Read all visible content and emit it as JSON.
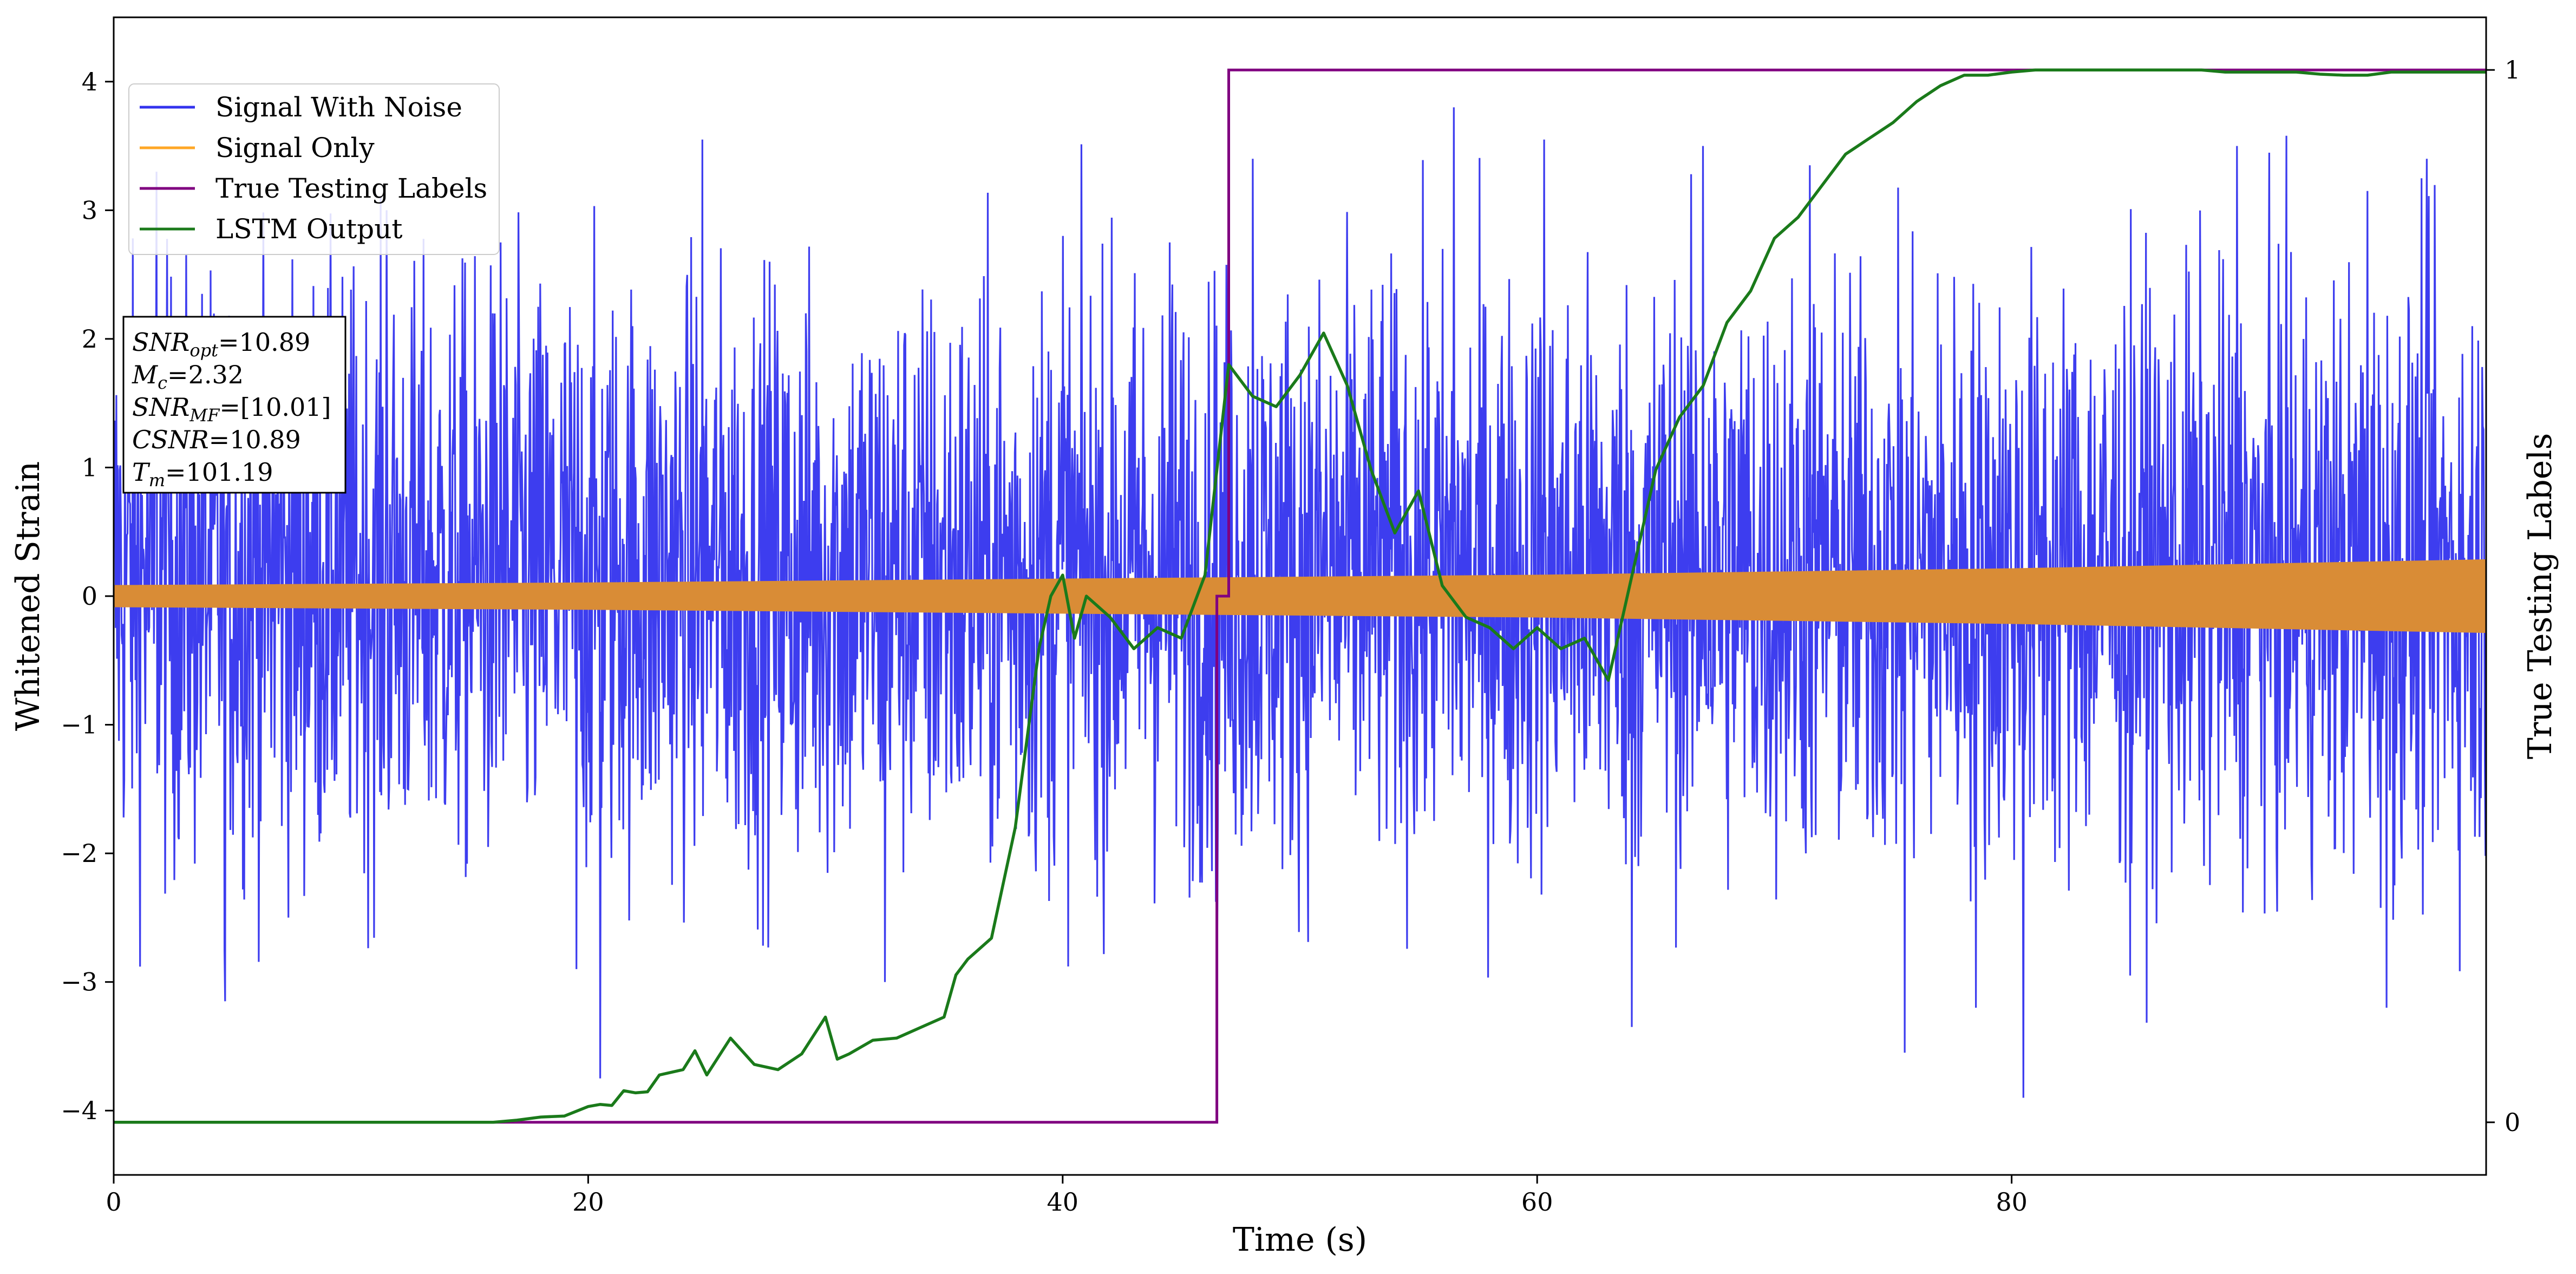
{
  "chart_data": {
    "type": "line",
    "xlabel": "Time (s)",
    "ylabel": "Whitened Strain",
    "y2label": "True Testing Labels",
    "xlim": [
      0,
      100
    ],
    "ylim": [
      -4.5,
      4.5
    ],
    "y2lim": [
      -0.05,
      1.05
    ],
    "xticks": [
      0,
      20,
      40,
      60,
      80
    ],
    "yticks": [
      -4,
      -3,
      -2,
      -1,
      0,
      1,
      2,
      3,
      4
    ],
    "y2ticks": [
      0,
      1
    ],
    "grid": false,
    "legend_position": "upper-left",
    "legend": [
      "Signal With Noise",
      "Signal Only",
      "True Testing Labels",
      "LSTM Output"
    ],
    "colors": {
      "signal_with_noise": "#3333ee",
      "signal_only": "#d98c36",
      "signal_only_legend": "#ffa726",
      "true_labels": "#800080",
      "lstm_output": "#1a7a1a"
    },
    "annotation": {
      "lines": [
        {
          "base": "SNR",
          "sub": "opt",
          "value": "=10.89"
        },
        {
          "base": "M",
          "sub": "c",
          "value": "=2.32"
        },
        {
          "base": "SNR",
          "sub": "MF",
          "value": "=[10.01]"
        },
        {
          "base": "CSNR",
          "sub": "",
          "value": "=10.89"
        },
        {
          "base": "T",
          "sub": "m",
          "value": "=101.19"
        }
      ]
    },
    "series": [
      {
        "name": "Signal With Noise",
        "axis": "left",
        "kind": "noise-band",
        "typical_range": [
          -1.7,
          2.0
        ],
        "approx_peak_values": [
          [
            1.8,
            3.3
          ],
          [
            4.7,
            -3.15
          ],
          [
            11.5,
            3.0
          ],
          [
            16.3,
            2.75
          ],
          [
            19.5,
            -2.9
          ],
          [
            20.5,
            -3.75
          ],
          [
            24.8,
            3.55
          ],
          [
            32.5,
            -3.0
          ],
          [
            40.0,
            2.8
          ],
          [
            44.5,
            2.75
          ],
          [
            46.5,
            -2.75
          ],
          [
            48.0,
            3.4
          ],
          [
            56.5,
            3.8
          ],
          [
            60.3,
            3.55
          ],
          [
            64.0,
            -3.35
          ],
          [
            67.0,
            3.5
          ],
          [
            71.5,
            3.35
          ],
          [
            75.5,
            -3.55
          ],
          [
            78.5,
            -3.2
          ],
          [
            80.5,
            -3.9
          ],
          [
            85.0,
            -2.95
          ],
          [
            89.5,
            3.5
          ],
          [
            95.0,
            3.15
          ],
          [
            95.8,
            -3.2
          ],
          [
            97.5,
            3.4
          ]
        ]
      },
      {
        "name": "Signal Only",
        "axis": "left",
        "kind": "envelope",
        "x": [
          0,
          20,
          40,
          60,
          80,
          100
        ],
        "upper": [
          0.08,
          0.1,
          0.13,
          0.16,
          0.21,
          0.28
        ],
        "lower": [
          -0.08,
          -0.1,
          -0.13,
          -0.16,
          -0.21,
          -0.28
        ]
      },
      {
        "name": "True Testing Labels",
        "axis": "right",
        "x": [
          0,
          46.5,
          46.5,
          47.0,
          47.0,
          100
        ],
        "y": [
          0,
          0,
          0.5,
          0.5,
          1,
          1
        ]
      },
      {
        "name": "LSTM Output",
        "axis": "right",
        "x": [
          0,
          16,
          17,
          18,
          19,
          20,
          20.5,
          21,
          21.5,
          22,
          22.5,
          23,
          24,
          24.5,
          25,
          26,
          27,
          28,
          29,
          30,
          30.5,
          31,
          32,
          33,
          34,
          35,
          35.5,
          36,
          37,
          38,
          39,
          39.5,
          40,
          40.5,
          41,
          42,
          43,
          44,
          45,
          46,
          46.5,
          47,
          48,
          49,
          50,
          51,
          52,
          53,
          54,
          55,
          56,
          57,
          58,
          59,
          60,
          61,
          62,
          63,
          64,
          65,
          66,
          67,
          68,
          69,
          70,
          71,
          72,
          73,
          74,
          75,
          76,
          77,
          78,
          79,
          80,
          81,
          82,
          83,
          84,
          85,
          86,
          87,
          88,
          89,
          90,
          91,
          92,
          93,
          94,
          95,
          96,
          97,
          98,
          99,
          100
        ],
        "y": [
          0,
          0,
          0.002,
          0.005,
          0.006,
          0.015,
          0.017,
          0.016,
          0.03,
          0.028,
          0.029,
          0.045,
          0.05,
          0.068,
          0.045,
          0.08,
          0.055,
          0.05,
          0.065,
          0.1,
          0.06,
          0.065,
          0.078,
          0.08,
          0.09,
          0.1,
          0.14,
          0.155,
          0.175,
          0.28,
          0.45,
          0.5,
          0.52,
          0.46,
          0.5,
          0.48,
          0.45,
          0.47,
          0.46,
          0.52,
          0.62,
          0.72,
          0.69,
          0.68,
          0.71,
          0.75,
          0.7,
          0.62,
          0.56,
          0.6,
          0.51,
          0.48,
          0.47,
          0.45,
          0.47,
          0.45,
          0.46,
          0.42,
          0.52,
          0.62,
          0.67,
          0.7,
          0.76,
          0.79,
          0.84,
          0.86,
          0.89,
          0.92,
          0.935,
          0.95,
          0.97,
          0.985,
          0.995,
          0.995,
          0.998,
          1.0,
          1.0,
          1.0,
          1.0,
          1.0,
          1.0,
          1.0,
          1.0,
          0.998,
          0.998,
          0.998,
          0.998,
          0.996,
          0.995,
          0.995,
          0.998,
          0.998,
          0.998,
          0.998,
          0.998
        ]
      }
    ]
  }
}
